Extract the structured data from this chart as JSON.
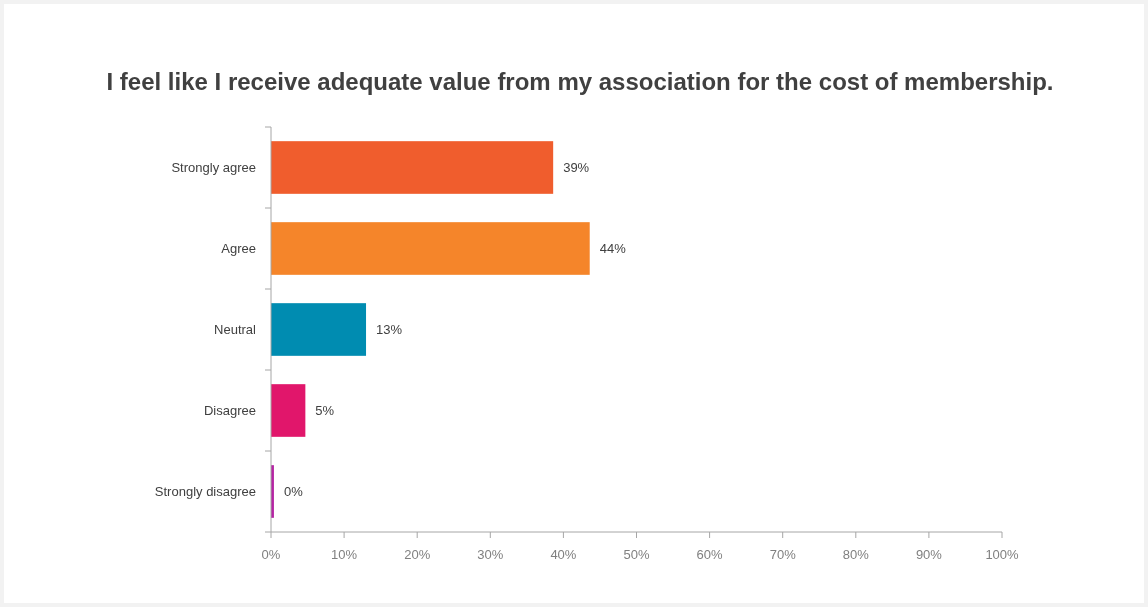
{
  "chart_data": {
    "type": "bar",
    "orientation": "horizontal",
    "title": "I feel like I receive adequate value from my association for the cost of membership.",
    "categories": [
      "Strongly agree",
      "Agree",
      "Neutral",
      "Disagree",
      "Strongly disagree"
    ],
    "values": [
      38.6,
      43.6,
      13,
      4.7,
      0.4
    ],
    "value_labels": [
      "39%",
      "44%",
      "13%",
      "5%",
      "0%"
    ],
    "colors": [
      "#f05d2d",
      "#f5852a",
      "#008cb1",
      "#e1166b",
      "#b524a3"
    ],
    "xlim": [
      0,
      100
    ],
    "xticks": [
      {
        "value": 0,
        "label": "0%"
      },
      {
        "value": 10,
        "label": "10%"
      },
      {
        "value": 20,
        "label": "20%"
      },
      {
        "value": 30,
        "label": "30%"
      },
      {
        "value": 40,
        "label": "40%"
      },
      {
        "value": 50,
        "label": "50%"
      },
      {
        "value": 60,
        "label": "60%"
      },
      {
        "value": 70,
        "label": "70%"
      },
      {
        "value": 80,
        "label": "80%"
      },
      {
        "value": 90,
        "label": "90%"
      },
      {
        "value": 100,
        "label": "100%"
      }
    ],
    "grid": false
  }
}
